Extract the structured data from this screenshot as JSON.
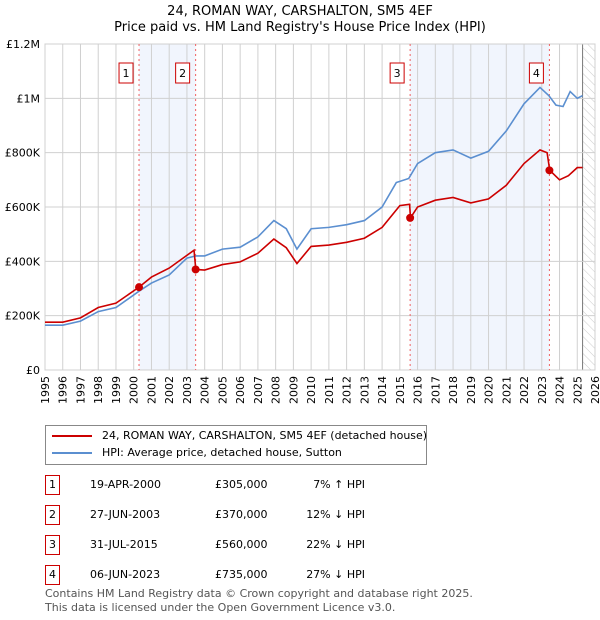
{
  "chart_data": {
    "type": "line",
    "title": "24, ROMAN WAY, CARSHALTON, SM5 4EF",
    "subtitle": "Price paid vs. HM Land Registry's House Price Index (HPI)",
    "xlim": [
      1995,
      2026
    ],
    "ylim": [
      0,
      1200000
    ],
    "x_ticks": [
      "1995",
      "1996",
      "1997",
      "1998",
      "1999",
      "2000",
      "2001",
      "2002",
      "2003",
      "2004",
      "2005",
      "2006",
      "2007",
      "2008",
      "2009",
      "2010",
      "2011",
      "2012",
      "2013",
      "2014",
      "2015",
      "2016",
      "2017",
      "2018",
      "2019",
      "2020",
      "2021",
      "2022",
      "2023",
      "2024",
      "2025",
      "2026"
    ],
    "y_ticks": [
      {
        "v": 0,
        "label": "£0"
      },
      {
        "v": 200000,
        "label": "£200K"
      },
      {
        "v": 400000,
        "label": "£400K"
      },
      {
        "v": 600000,
        "label": "£600K"
      },
      {
        "v": 800000,
        "label": "£800K"
      },
      {
        "v": 1000000,
        "label": "£1M"
      },
      {
        "v": 1200000,
        "label": "£1.2M"
      }
    ],
    "grid": true,
    "series": [
      {
        "name": "24, ROMAN WAY, CARSHALTON, SM5 4EF (detached house)",
        "color": "#cc0000",
        "points": [
          [
            1995,
            176000
          ],
          [
            1996,
            176000
          ],
          [
            1997,
            192000
          ],
          [
            1998,
            230000
          ],
          [
            1999,
            246000
          ],
          [
            2000.3,
            305000
          ],
          [
            2001,
            342000
          ],
          [
            2002,
            375000
          ],
          [
            2003.4,
            441000
          ],
          [
            2003.5,
            370000
          ],
          [
            2004,
            368000
          ],
          [
            2005,
            388000
          ],
          [
            2006,
            398000
          ],
          [
            2007,
            430000
          ],
          [
            2007.9,
            482000
          ],
          [
            2008.6,
            450000
          ],
          [
            2009.2,
            392000
          ],
          [
            2010,
            455000
          ],
          [
            2011,
            460000
          ],
          [
            2012,
            470000
          ],
          [
            2013,
            485000
          ],
          [
            2014,
            525000
          ],
          [
            2015,
            605000
          ],
          [
            2015.55,
            610000
          ],
          [
            2015.6,
            560000
          ],
          [
            2016,
            600000
          ],
          [
            2017,
            625000
          ],
          [
            2018,
            635000
          ],
          [
            2019,
            615000
          ],
          [
            2020,
            630000
          ],
          [
            2021,
            680000
          ],
          [
            2022,
            760000
          ],
          [
            2022.9,
            810000
          ],
          [
            2023.3,
            800000
          ],
          [
            2023.45,
            735000
          ],
          [
            2024,
            700000
          ],
          [
            2024.5,
            715000
          ],
          [
            2025,
            745000
          ],
          [
            2025.3,
            745000
          ]
        ]
      },
      {
        "name": "HPI: Average price, detached house, Sutton",
        "color": "#5b8fd0",
        "points": [
          [
            1995,
            165000
          ],
          [
            1996,
            165000
          ],
          [
            1997,
            180000
          ],
          [
            1998,
            215000
          ],
          [
            1999,
            230000
          ],
          [
            2000.3,
            290000
          ],
          [
            2001,
            320000
          ],
          [
            2002,
            350000
          ],
          [
            2003,
            412000
          ],
          [
            2003.5,
            420000
          ],
          [
            2004,
            420000
          ],
          [
            2005,
            445000
          ],
          [
            2006,
            452000
          ],
          [
            2007,
            490000
          ],
          [
            2007.9,
            550000
          ],
          [
            2008.6,
            520000
          ],
          [
            2009.2,
            445000
          ],
          [
            2010,
            520000
          ],
          [
            2011,
            525000
          ],
          [
            2012,
            535000
          ],
          [
            2013,
            550000
          ],
          [
            2014,
            600000
          ],
          [
            2014.8,
            690000
          ],
          [
            2015.5,
            705000
          ],
          [
            2016,
            760000
          ],
          [
            2017,
            800000
          ],
          [
            2018,
            810000
          ],
          [
            2019,
            780000
          ],
          [
            2020,
            805000
          ],
          [
            2021,
            880000
          ],
          [
            2022,
            980000
          ],
          [
            2022.9,
            1040000
          ],
          [
            2023.4,
            1010000
          ],
          [
            2023.8,
            975000
          ],
          [
            2024.2,
            970000
          ],
          [
            2024.6,
            1025000
          ],
          [
            2025,
            1000000
          ],
          [
            2025.3,
            1010000
          ]
        ]
      }
    ],
    "sales": [
      {
        "id": "1",
        "x": 2000.3,
        "value": 305000,
        "date": "19-APR-2000",
        "price": "£305,000",
        "hpi": "7% ↑ HPI"
      },
      {
        "id": "2",
        "x": 2003.49,
        "value": 370000,
        "date": "27-JUN-2003",
        "price": "£370,000",
        "hpi": "12% ↓ HPI"
      },
      {
        "id": "3",
        "x": 2015.58,
        "value": 560000,
        "date": "31-JUL-2015",
        "price": "£560,000",
        "hpi": "22% ↓ HPI"
      },
      {
        "id": "4",
        "x": 2023.43,
        "value": 735000,
        "date": "06-JUN-2023",
        "price": "£735,000",
        "hpi": "27% ↓ HPI"
      }
    ],
    "shaded": [
      [
        2000.3,
        2003.49
      ],
      [
        2015.58,
        2023.43
      ]
    ],
    "future_from": 2025.3,
    "legend_placement": "below"
  },
  "footer": {
    "line1": "Contains HM Land Registry data © Crown copyright and database right 2025.",
    "line2": "This data is licensed under the Open Government Licence v3.0."
  }
}
